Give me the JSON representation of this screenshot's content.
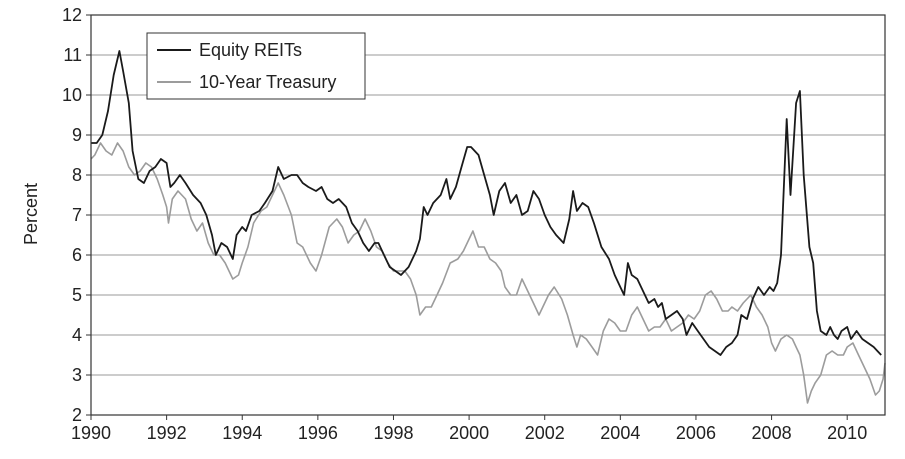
{
  "chart_data": {
    "type": "line",
    "title": "",
    "xlabel": "",
    "ylabel": "Percent",
    "xlim": [
      1990,
      2011
    ],
    "ylim": [
      2,
      12
    ],
    "x_ticks": [
      1990,
      1992,
      1994,
      1996,
      1998,
      2000,
      2002,
      2004,
      2006,
      2008,
      2010
    ],
    "y_ticks": [
      2,
      3,
      4,
      5,
      6,
      7,
      8,
      9,
      10,
      11,
      12
    ],
    "grid": "horizontal",
    "legend_position": "top-left",
    "series": [
      {
        "name": "Equity REITs",
        "color": "#1a1a1a",
        "points": [
          [
            1990.0,
            8.8
          ],
          [
            1990.15,
            8.8
          ],
          [
            1990.3,
            9.0
          ],
          [
            1990.45,
            9.6
          ],
          [
            1990.6,
            10.5
          ],
          [
            1990.75,
            11.1
          ],
          [
            1990.85,
            10.6
          ],
          [
            1991.0,
            9.8
          ],
          [
            1991.1,
            8.6
          ],
          [
            1991.25,
            7.9
          ],
          [
            1991.4,
            7.8
          ],
          [
            1991.55,
            8.1
          ],
          [
            1991.7,
            8.2
          ],
          [
            1991.85,
            8.4
          ],
          [
            1992.0,
            8.3
          ],
          [
            1992.1,
            7.7
          ],
          [
            1992.2,
            7.8
          ],
          [
            1992.35,
            8.0
          ],
          [
            1992.5,
            7.8
          ],
          [
            1992.7,
            7.5
          ],
          [
            1992.9,
            7.3
          ],
          [
            1993.05,
            7.0
          ],
          [
            1993.2,
            6.5
          ],
          [
            1993.3,
            6.0
          ],
          [
            1993.45,
            6.3
          ],
          [
            1993.6,
            6.2
          ],
          [
            1993.75,
            5.9
          ],
          [
            1993.85,
            6.5
          ],
          [
            1994.0,
            6.7
          ],
          [
            1994.1,
            6.6
          ],
          [
            1994.25,
            7.0
          ],
          [
            1994.45,
            7.1
          ],
          [
            1994.6,
            7.3
          ],
          [
            1994.8,
            7.6
          ],
          [
            1994.95,
            8.2
          ],
          [
            1995.1,
            7.9
          ],
          [
            1995.3,
            8.0
          ],
          [
            1995.45,
            8.0
          ],
          [
            1995.6,
            7.8
          ],
          [
            1995.75,
            7.7
          ],
          [
            1995.95,
            7.6
          ],
          [
            1996.1,
            7.7
          ],
          [
            1996.25,
            7.4
          ],
          [
            1996.4,
            7.3
          ],
          [
            1996.55,
            7.4
          ],
          [
            1996.75,
            7.2
          ],
          [
            1996.9,
            6.8
          ],
          [
            1997.05,
            6.6
          ],
          [
            1997.2,
            6.3
          ],
          [
            1997.35,
            6.1
          ],
          [
            1997.5,
            6.3
          ],
          [
            1997.6,
            6.3
          ],
          [
            1997.75,
            6.0
          ],
          [
            1997.9,
            5.7
          ],
          [
            1998.05,
            5.6
          ],
          [
            1998.2,
            5.5
          ],
          [
            1998.4,
            5.7
          ],
          [
            1998.6,
            6.1
          ],
          [
            1998.7,
            6.4
          ],
          [
            1998.8,
            7.2
          ],
          [
            1998.9,
            7.0
          ],
          [
            1999.05,
            7.3
          ],
          [
            1999.25,
            7.5
          ],
          [
            1999.4,
            7.9
          ],
          [
            1999.5,
            7.4
          ],
          [
            1999.65,
            7.7
          ],
          [
            1999.8,
            8.2
          ],
          [
            1999.95,
            8.7
          ],
          [
            2000.05,
            8.7
          ],
          [
            2000.25,
            8.5
          ],
          [
            2000.4,
            8.0
          ],
          [
            2000.55,
            7.5
          ],
          [
            2000.65,
            7.0
          ],
          [
            2000.8,
            7.6
          ],
          [
            2000.95,
            7.8
          ],
          [
            2001.1,
            7.3
          ],
          [
            2001.25,
            7.5
          ],
          [
            2001.4,
            7.0
          ],
          [
            2001.55,
            7.1
          ],
          [
            2001.7,
            7.6
          ],
          [
            2001.85,
            7.4
          ],
          [
            2002.0,
            7.0
          ],
          [
            2002.15,
            6.7
          ],
          [
            2002.3,
            6.5
          ],
          [
            2002.5,
            6.3
          ],
          [
            2002.65,
            6.9
          ],
          [
            2002.75,
            7.6
          ],
          [
            2002.85,
            7.1
          ],
          [
            2003.0,
            7.3
          ],
          [
            2003.15,
            7.2
          ],
          [
            2003.3,
            6.8
          ],
          [
            2003.5,
            6.2
          ],
          [
            2003.7,
            5.9
          ],
          [
            2003.85,
            5.5
          ],
          [
            2004.0,
            5.2
          ],
          [
            2004.1,
            5.0
          ],
          [
            2004.2,
            5.8
          ],
          [
            2004.3,
            5.5
          ],
          [
            2004.45,
            5.4
          ],
          [
            2004.6,
            5.1
          ],
          [
            2004.75,
            4.8
          ],
          [
            2004.9,
            4.9
          ],
          [
            2005.0,
            4.7
          ],
          [
            2005.1,
            4.8
          ],
          [
            2005.2,
            4.4
          ],
          [
            2005.35,
            4.5
          ],
          [
            2005.5,
            4.6
          ],
          [
            2005.65,
            4.4
          ],
          [
            2005.75,
            4.0
          ],
          [
            2005.9,
            4.3
          ],
          [
            2006.05,
            4.1
          ],
          [
            2006.2,
            3.9
          ],
          [
            2006.35,
            3.7
          ],
          [
            2006.5,
            3.6
          ],
          [
            2006.65,
            3.5
          ],
          [
            2006.8,
            3.7
          ],
          [
            2006.95,
            3.8
          ],
          [
            2007.1,
            4.0
          ],
          [
            2007.2,
            4.5
          ],
          [
            2007.35,
            4.4
          ],
          [
            2007.5,
            4.9
          ],
          [
            2007.65,
            5.2
          ],
          [
            2007.8,
            5.0
          ],
          [
            2007.95,
            5.2
          ],
          [
            2008.05,
            5.1
          ],
          [
            2008.15,
            5.3
          ],
          [
            2008.25,
            6.0
          ],
          [
            2008.4,
            9.4
          ],
          [
            2008.5,
            7.5
          ],
          [
            2008.65,
            9.8
          ],
          [
            2008.75,
            10.1
          ],
          [
            2008.85,
            8.0
          ],
          [
            2009.0,
            6.2
          ],
          [
            2009.1,
            5.8
          ],
          [
            2009.2,
            4.6
          ],
          [
            2009.3,
            4.1
          ],
          [
            2009.45,
            4.0
          ],
          [
            2009.55,
            4.2
          ],
          [
            2009.65,
            4.0
          ],
          [
            2009.75,
            3.9
          ],
          [
            2009.85,
            4.1
          ],
          [
            2010.0,
            4.2
          ],
          [
            2010.1,
            3.9
          ],
          [
            2010.25,
            4.1
          ],
          [
            2010.4,
            3.9
          ],
          [
            2010.55,
            3.8
          ],
          [
            2010.7,
            3.7
          ],
          [
            2010.8,
            3.6
          ],
          [
            2010.9,
            3.5
          ]
        ]
      },
      {
        "name": "10-Year Treasury",
        "color": "#9c9c9c",
        "points": [
          [
            1990.0,
            8.4
          ],
          [
            1990.1,
            8.5
          ],
          [
            1990.25,
            8.8
          ],
          [
            1990.4,
            8.6
          ],
          [
            1990.55,
            8.5
          ],
          [
            1990.7,
            8.8
          ],
          [
            1990.85,
            8.6
          ],
          [
            1991.0,
            8.2
          ],
          [
            1991.15,
            8.0
          ],
          [
            1991.3,
            8.1
          ],
          [
            1991.45,
            8.3
          ],
          [
            1991.6,
            8.2
          ],
          [
            1991.75,
            7.9
          ],
          [
            1991.9,
            7.5
          ],
          [
            1992.0,
            7.2
          ],
          [
            1992.05,
            6.8
          ],
          [
            1992.15,
            7.4
          ],
          [
            1992.3,
            7.6
          ],
          [
            1992.5,
            7.4
          ],
          [
            1992.65,
            6.9
          ],
          [
            1992.8,
            6.6
          ],
          [
            1992.95,
            6.8
          ],
          [
            1993.1,
            6.3
          ],
          [
            1993.25,
            6.0
          ],
          [
            1993.4,
            6.0
          ],
          [
            1993.55,
            5.8
          ],
          [
            1993.75,
            5.4
          ],
          [
            1993.9,
            5.5
          ],
          [
            1994.0,
            5.8
          ],
          [
            1994.15,
            6.2
          ],
          [
            1994.3,
            6.8
          ],
          [
            1994.5,
            7.1
          ],
          [
            1994.65,
            7.2
          ],
          [
            1994.8,
            7.5
          ],
          [
            1994.95,
            7.8
          ],
          [
            1995.1,
            7.5
          ],
          [
            1995.3,
            7.0
          ],
          [
            1995.45,
            6.3
          ],
          [
            1995.6,
            6.2
          ],
          [
            1995.8,
            5.8
          ],
          [
            1995.95,
            5.6
          ],
          [
            1996.1,
            6.0
          ],
          [
            1996.3,
            6.7
          ],
          [
            1996.5,
            6.9
          ],
          [
            1996.65,
            6.7
          ],
          [
            1996.8,
            6.3
          ],
          [
            1996.95,
            6.5
          ],
          [
            1997.1,
            6.6
          ],
          [
            1997.25,
            6.9
          ],
          [
            1997.4,
            6.6
          ],
          [
            1997.55,
            6.2
          ],
          [
            1997.7,
            6.1
          ],
          [
            1997.85,
            5.8
          ],
          [
            1998.0,
            5.6
          ],
          [
            1998.15,
            5.6
          ],
          [
            1998.3,
            5.6
          ],
          [
            1998.45,
            5.4
          ],
          [
            1998.6,
            5.0
          ],
          [
            1998.7,
            4.5
          ],
          [
            1998.85,
            4.7
          ],
          [
            1999.0,
            4.7
          ],
          [
            1999.15,
            5.0
          ],
          [
            1999.3,
            5.3
          ],
          [
            1999.5,
            5.8
          ],
          [
            1999.7,
            5.9
          ],
          [
            1999.85,
            6.1
          ],
          [
            1999.95,
            6.3
          ],
          [
            2000.1,
            6.6
          ],
          [
            2000.25,
            6.2
          ],
          [
            2000.4,
            6.2
          ],
          [
            2000.55,
            5.9
          ],
          [
            2000.7,
            5.8
          ],
          [
            2000.85,
            5.6
          ],
          [
            2000.95,
            5.2
          ],
          [
            2001.1,
            5.0
          ],
          [
            2001.25,
            5.0
          ],
          [
            2001.4,
            5.4
          ],
          [
            2001.55,
            5.1
          ],
          [
            2001.7,
            4.8
          ],
          [
            2001.85,
            4.5
          ],
          [
            2001.95,
            4.7
          ],
          [
            2002.1,
            5.0
          ],
          [
            2002.25,
            5.2
          ],
          [
            2002.45,
            4.9
          ],
          [
            2002.6,
            4.5
          ],
          [
            2002.75,
            4.0
          ],
          [
            2002.85,
            3.7
          ],
          [
            2002.95,
            4.0
          ],
          [
            2003.1,
            3.9
          ],
          [
            2003.25,
            3.7
          ],
          [
            2003.4,
            3.5
          ],
          [
            2003.55,
            4.1
          ],
          [
            2003.7,
            4.4
          ],
          [
            2003.85,
            4.3
          ],
          [
            2004.0,
            4.1
          ],
          [
            2004.15,
            4.1
          ],
          [
            2004.3,
            4.5
          ],
          [
            2004.45,
            4.7
          ],
          [
            2004.6,
            4.4
          ],
          [
            2004.75,
            4.1
          ],
          [
            2004.9,
            4.2
          ],
          [
            2005.05,
            4.2
          ],
          [
            2005.2,
            4.4
          ],
          [
            2005.35,
            4.1
          ],
          [
            2005.5,
            4.2
          ],
          [
            2005.65,
            4.3
          ],
          [
            2005.8,
            4.5
          ],
          [
            2005.95,
            4.4
          ],
          [
            2006.1,
            4.6
          ],
          [
            2006.25,
            5.0
          ],
          [
            2006.4,
            5.1
          ],
          [
            2006.55,
            4.9
          ],
          [
            2006.7,
            4.6
          ],
          [
            2006.85,
            4.6
          ],
          [
            2006.95,
            4.7
          ],
          [
            2007.1,
            4.6
          ],
          [
            2007.25,
            4.8
          ],
          [
            2007.45,
            5.0
          ],
          [
            2007.6,
            4.7
          ],
          [
            2007.75,
            4.5
          ],
          [
            2007.9,
            4.2
          ],
          [
            2008.0,
            3.8
          ],
          [
            2008.1,
            3.6
          ],
          [
            2008.25,
            3.9
          ],
          [
            2008.4,
            4.0
          ],
          [
            2008.55,
            3.9
          ],
          [
            2008.65,
            3.7
          ],
          [
            2008.75,
            3.5
          ],
          [
            2008.85,
            3.0
          ],
          [
            2008.95,
            2.3
          ],
          [
            2009.05,
            2.6
          ],
          [
            2009.15,
            2.8
          ],
          [
            2009.3,
            3.0
          ],
          [
            2009.45,
            3.5
          ],
          [
            2009.6,
            3.6
          ],
          [
            2009.75,
            3.5
          ],
          [
            2009.9,
            3.5
          ],
          [
            2010.0,
            3.7
          ],
          [
            2010.15,
            3.8
          ],
          [
            2010.3,
            3.5
          ],
          [
            2010.45,
            3.2
          ],
          [
            2010.6,
            2.9
          ],
          [
            2010.75,
            2.5
          ],
          [
            2010.85,
            2.6
          ],
          [
            2010.95,
            2.9
          ],
          [
            2011.0,
            3.3
          ]
        ]
      }
    ]
  }
}
